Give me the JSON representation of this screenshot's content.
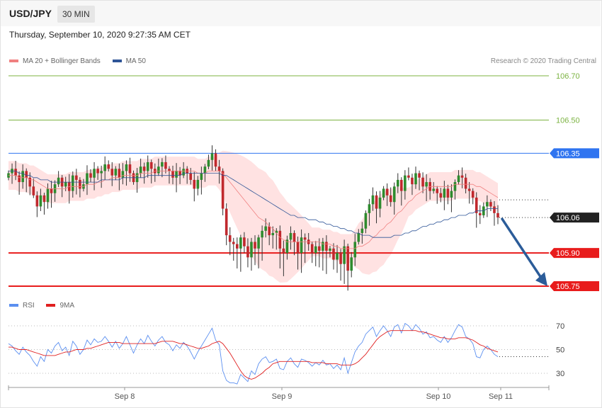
{
  "header": {
    "pair": "USD/JPY",
    "timeframe": "30 MIN",
    "timestamp": "Thursday, September 10, 2020 9:27:35 AM CET",
    "copyright": "Research © 2020 Trading Central"
  },
  "legend": {
    "main": [
      {
        "label": "MA 20 + Bollinger Bands",
        "color": "#f08080"
      },
      {
        "label": "MA 50",
        "color": "#2f5597"
      }
    ],
    "rsi": [
      {
        "label": "RSI",
        "color": "#5b8ff0"
      },
      {
        "label": "9MA",
        "color": "#e02020"
      }
    ]
  },
  "colors": {
    "bull": "#2e8b2e",
    "bear": "#c0282d",
    "resistance_blue": "#2f74f0",
    "support_red": "#e81c1c",
    "target_green": "#7cb342",
    "arrow": "#2b5c99",
    "band_fill": "#ffe2e2"
  },
  "chart_data": [
    {
      "type": "candlestick",
      "ylim": [
        105.71,
        106.75
      ],
      "x_ticks": [
        "Sep 8",
        "Sep 9",
        "Sep 10",
        "Sep 11"
      ],
      "levels": [
        {
          "value": 106.7,
          "label": "106.70",
          "kind": "target"
        },
        {
          "value": 106.5,
          "label": "106.50",
          "kind": "target"
        },
        {
          "value": 106.35,
          "label": "106.35",
          "kind": "resistance"
        },
        {
          "value": 106.06,
          "label": "106.06",
          "kind": "last-price"
        },
        {
          "value": 105.9,
          "label": "105.90",
          "kind": "support"
        },
        {
          "value": 105.75,
          "label": "105.75",
          "kind": "support"
        }
      ],
      "projection": {
        "from": 106.06,
        "to": 105.75
      },
      "close": [
        106.26,
        106.28,
        106.25,
        106.22,
        106.27,
        106.24,
        106.2,
        106.16,
        106.11,
        106.16,
        106.13,
        106.19,
        106.17,
        106.21,
        106.24,
        106.2,
        106.22,
        106.18,
        106.25,
        106.23,
        106.19,
        106.21,
        106.26,
        106.24,
        106.28,
        106.26,
        106.27,
        106.3,
        106.28,
        106.25,
        106.28,
        106.24,
        106.27,
        106.3,
        106.26,
        106.22,
        106.26,
        106.29,
        106.27,
        106.31,
        106.28,
        106.26,
        106.29,
        106.31,
        106.28,
        106.27,
        106.24,
        106.27,
        106.25,
        106.28,
        106.26,
        106.23,
        106.19,
        106.23,
        106.26,
        106.29,
        106.32,
        106.35,
        106.29,
        106.27,
        106.1,
        105.98,
        105.95,
        105.94,
        105.92,
        105.97,
        105.93,
        105.88,
        105.95,
        105.92,
        105.97,
        106.0,
        106.02,
        105.98,
        105.99,
        106.0,
        105.92,
        105.9,
        105.96,
        105.99,
        105.95,
        105.9,
        105.97,
        105.96,
        105.94,
        105.9,
        105.93,
        105.91,
        105.95,
        105.91,
        105.92,
        105.87,
        105.9,
        105.85,
        105.93,
        105.82,
        105.88,
        105.95,
        105.99,
        106.01,
        106.08,
        106.12,
        106.16,
        106.1,
        106.15,
        106.19,
        106.16,
        106.13,
        106.2,
        106.23,
        106.18,
        106.25,
        106.24,
        106.21,
        106.26,
        106.24,
        106.2,
        106.22,
        106.18,
        106.19,
        106.17,
        106.15,
        106.19,
        106.15,
        106.18,
        106.22,
        106.25,
        106.24,
        106.19,
        106.18,
        106.15,
        106.08,
        106.07,
        106.11,
        106.13,
        106.11,
        106.08,
        106.06
      ],
      "series": [
        {
          "name": "MA 20 + Bollinger Bands",
          "values": [
            106.25,
            106.25,
            106.25,
            106.24,
            106.24,
            106.24,
            106.23,
            106.23,
            106.22,
            106.21,
            106.2,
            106.19,
            106.19,
            106.19,
            106.19,
            106.19,
            106.19,
            106.2,
            106.2,
            106.2,
            106.2,
            106.2,
            106.21,
            106.21,
            106.21,
            106.22,
            106.22,
            106.23,
            106.23,
            106.24,
            106.24,
            106.24,
            106.25,
            106.25,
            106.25,
            106.25,
            106.25,
            106.26,
            106.26,
            106.26,
            106.26,
            106.27,
            106.27,
            106.27,
            106.27,
            106.27,
            106.27,
            106.27,
            106.27,
            106.27,
            106.27,
            106.27,
            106.27,
            106.26,
            106.26,
            106.26,
            106.27,
            106.27,
            106.27,
            106.27,
            106.26,
            106.24,
            106.22,
            106.2,
            106.18,
            106.16,
            106.14,
            106.12,
            106.1,
            106.08,
            106.06,
            106.05,
            106.04,
            106.02,
            106.01,
            105.99,
            105.97,
            105.96,
            105.95,
            105.95,
            105.95,
            105.95,
            105.95,
            105.95,
            105.95,
            105.95,
            105.95,
            105.95,
            105.94,
            105.94,
            105.94,
            105.93,
            105.93,
            105.92,
            105.92,
            105.92,
            105.92,
            105.92,
            105.93,
            105.93,
            105.94,
            105.95,
            105.97,
            105.98,
            106.0,
            106.01,
            106.03,
            106.04,
            106.06,
            106.08,
            106.09,
            106.11,
            106.13,
            106.14,
            106.16,
            106.17,
            106.18,
            106.19,
            106.2,
            106.2,
            106.2,
            106.2,
            106.2,
            106.2,
            106.2,
            106.21,
            106.21,
            106.21,
            106.21,
            106.21,
            106.21,
            106.2,
            106.2,
            106.19,
            106.18,
            106.17,
            106.16,
            106.15
          ]
        },
        {
          "name": "MA 50",
          "values": [
            106.27,
            106.27,
            106.27,
            106.26,
            106.26,
            106.25,
            106.25,
            106.24,
            106.24,
            106.23,
            106.23,
            106.23,
            106.22,
            106.22,
            106.22,
            106.22,
            106.22,
            106.22,
            106.22,
            106.22,
            106.22,
            106.22,
            106.22,
            106.22,
            106.22,
            106.22,
            106.23,
            106.23,
            106.23,
            106.23,
            106.23,
            106.23,
            106.24,
            106.24,
            106.24,
            106.24,
            106.24,
            106.24,
            106.24,
            106.25,
            106.25,
            106.25,
            106.25,
            106.25,
            106.25,
            106.25,
            106.25,
            106.25,
            106.25,
            106.26,
            106.26,
            106.26,
            106.26,
            106.26,
            106.26,
            106.26,
            106.26,
            106.26,
            106.26,
            106.26,
            106.25,
            106.25,
            106.24,
            106.23,
            106.22,
            106.21,
            106.2,
            106.19,
            106.18,
            106.17,
            106.16,
            106.15,
            106.14,
            106.13,
            106.12,
            106.11,
            106.1,
            106.09,
            106.08,
            106.07,
            106.07,
            106.06,
            106.06,
            106.06,
            106.05,
            106.05,
            106.05,
            106.04,
            106.04,
            106.03,
            106.03,
            106.02,
            106.02,
            106.01,
            106.01,
            106.0,
            106.0,
            105.99,
            105.99,
            105.98,
            105.98,
            105.98,
            105.97,
            105.97,
            105.97,
            105.97,
            105.97,
            105.97,
            105.98,
            105.98,
            105.98,
            105.99,
            105.99,
            106.0,
            106.0,
            106.01,
            106.02,
            106.02,
            106.03,
            106.03,
            106.04,
            106.04,
            106.05,
            106.05,
            106.06,
            106.06,
            106.07,
            106.07,
            106.07,
            106.08,
            106.08,
            106.09,
            106.09,
            106.09,
            106.1,
            106.1,
            106.1,
            106.1
          ]
        }
      ]
    },
    {
      "type": "line",
      "ylim": [
        22,
        78
      ],
      "y_ticks": [
        70,
        50,
        30
      ],
      "series": [
        {
          "name": "RSI",
          "values": [
            55,
            53,
            49,
            46,
            52,
            48,
            45,
            40,
            36,
            44,
            40,
            50,
            47,
            53,
            56,
            49,
            52,
            45,
            57,
            53,
            46,
            50,
            58,
            54,
            59,
            56,
            57,
            61,
            57,
            52,
            57,
            51,
            55,
            61,
            54,
            47,
            54,
            59,
            55,
            62,
            57,
            53,
            58,
            61,
            56,
            54,
            49,
            54,
            51,
            56,
            53,
            48,
            42,
            48,
            53,
            58,
            63,
            68,
            58,
            54,
            32,
            24,
            22,
            22,
            21,
            29,
            26,
            23,
            32,
            29,
            38,
            42,
            44,
            39,
            40,
            42,
            34,
            33,
            40,
            43,
            38,
            35,
            42,
            41,
            39,
            36,
            39,
            37,
            41,
            37,
            38,
            34,
            37,
            33,
            43,
            30,
            39,
            48,
            53,
            56,
            63,
            66,
            69,
            61,
            66,
            70,
            66,
            61,
            69,
            71,
            64,
            72,
            70,
            66,
            71,
            68,
            63,
            65,
            60,
            61,
            58,
            56,
            61,
            56,
            60,
            66,
            71,
            69,
            61,
            59,
            55,
            44,
            43,
            50,
            53,
            50,
            46,
            44
          ]
        },
        {
          "name": "9MA",
          "values": [
            52,
            52,
            51,
            50,
            50,
            50,
            49,
            48,
            47,
            46,
            45,
            45,
            45,
            45,
            46,
            47,
            48,
            48,
            49,
            50,
            50,
            50,
            51,
            51,
            52,
            53,
            54,
            55,
            56,
            56,
            56,
            56,
            55,
            55,
            55,
            55,
            55,
            55,
            55,
            55,
            55,
            55,
            56,
            57,
            57,
            57,
            57,
            56,
            55,
            55,
            54,
            53,
            52,
            51,
            51,
            52,
            53,
            55,
            56,
            57,
            55,
            51,
            47,
            42,
            37,
            32,
            28,
            26,
            25,
            26,
            28,
            30,
            33,
            35,
            38,
            39,
            40,
            40,
            40,
            40,
            40,
            40,
            40,
            40,
            40,
            39,
            39,
            39,
            39,
            38,
            38,
            38,
            38,
            37,
            37,
            37,
            37,
            38,
            40,
            43,
            46,
            50,
            54,
            58,
            61,
            63,
            65,
            66,
            66,
            66,
            66,
            66,
            66,
            66,
            66,
            65,
            65,
            64,
            63,
            62,
            61,
            60,
            60,
            59,
            59,
            59,
            60,
            60,
            60,
            59,
            58,
            56,
            54,
            53,
            51,
            50,
            49,
            48
          ]
        }
      ]
    }
  ]
}
